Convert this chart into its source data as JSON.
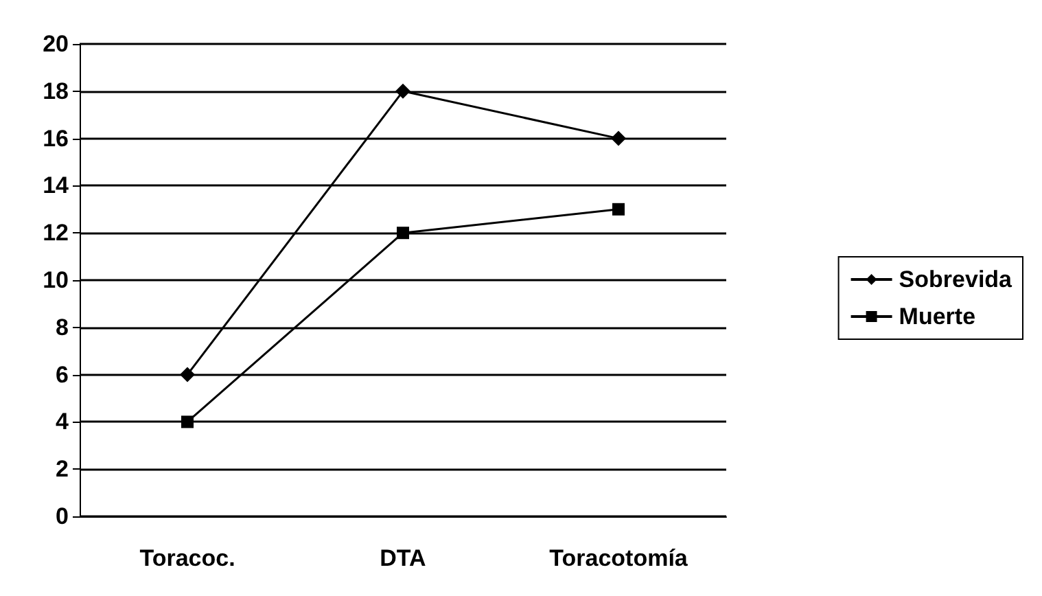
{
  "chart_data": {
    "type": "line",
    "categories": [
      "Toracoc.",
      "DTA",
      "Toracotomía"
    ],
    "series": [
      {
        "name": "Sobrevida",
        "color": "#000000",
        "marker": "diamond",
        "values": [
          6,
          18,
          16
        ]
      },
      {
        "name": "Muerte",
        "color": "#000000",
        "marker": "square",
        "values": [
          4,
          12,
          13
        ]
      }
    ],
    "ylim": [
      0,
      20
    ],
    "yticks": [
      0,
      2,
      4,
      6,
      8,
      10,
      12,
      14,
      16,
      18,
      20
    ],
    "grid": "y",
    "legend": "right",
    "line_style": "solid"
  }
}
